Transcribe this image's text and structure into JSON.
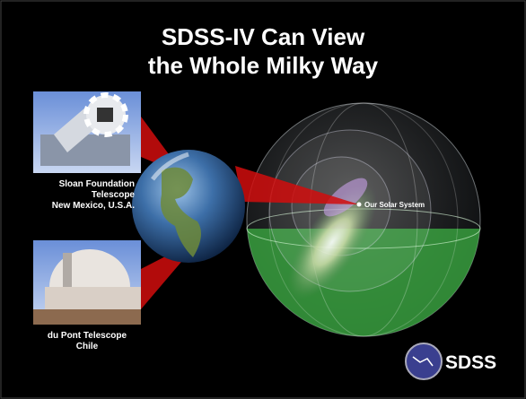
{
  "title": [
    "SDSS-IV Can View",
    "the Whole Milky Way"
  ],
  "telescopes": [
    {
      "caption": [
        "Sloan Foundation",
        "Telescope",
        "New Mexico, U.S.A."
      ]
    },
    {
      "caption": [
        "du Pont Telescope",
        "Chile"
      ]
    }
  ],
  "galaxy_label": "Our Solar System",
  "logo": "SDSS"
}
